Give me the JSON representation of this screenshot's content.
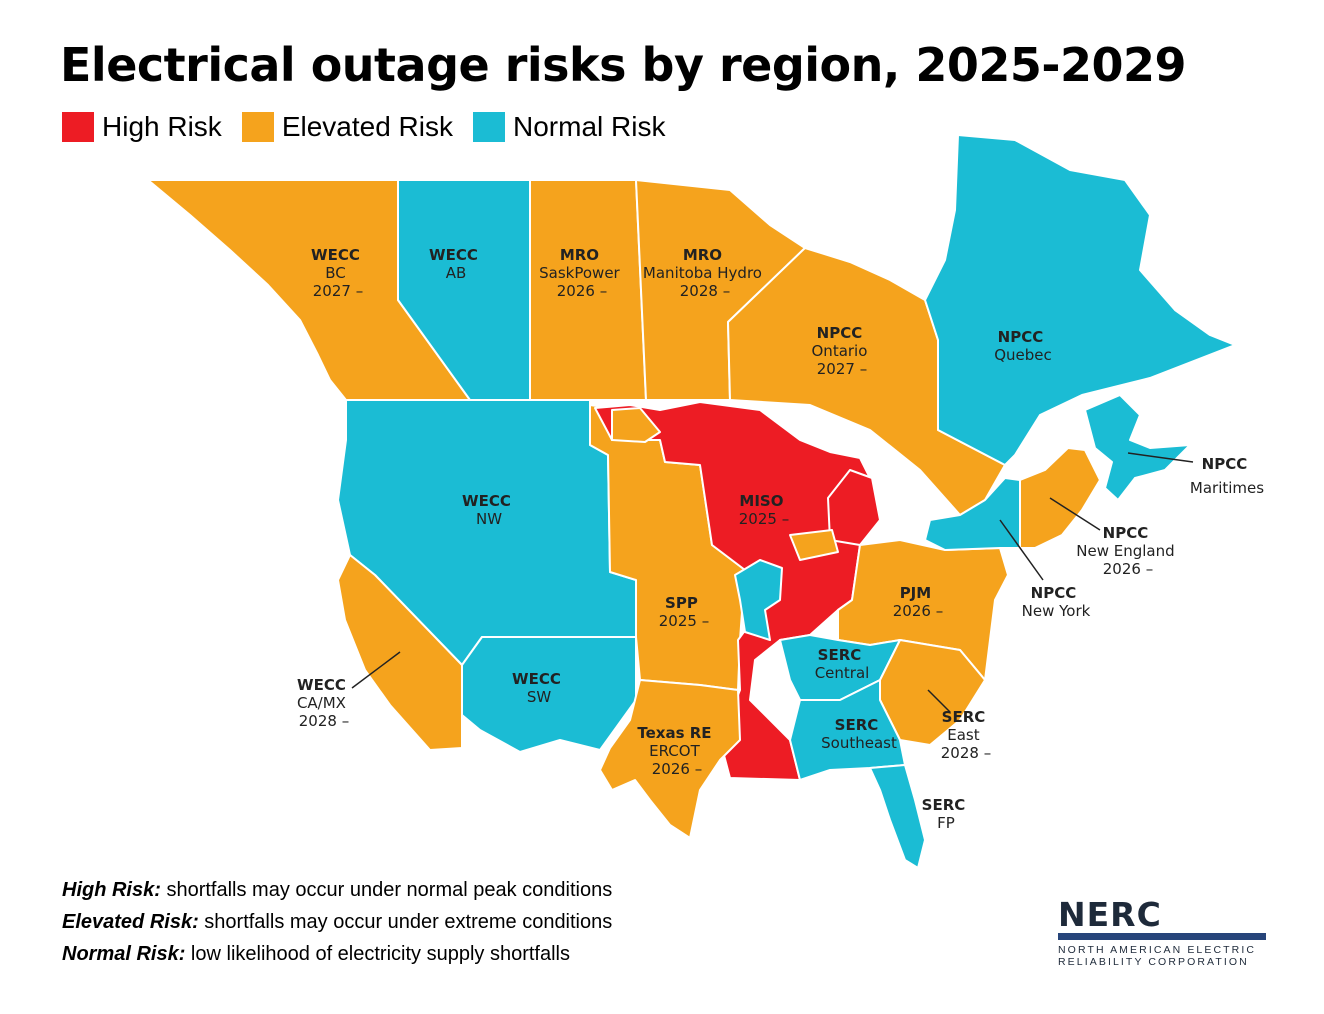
{
  "title": "Electrical outage risks by region, 2025-2029",
  "legend": [
    {
      "label": "High Risk",
      "color": "#ed1c24"
    },
    {
      "label": "Elevated Risk",
      "color": "#f5a31d"
    },
    {
      "label": "Normal Risk",
      "color": "#1bbcd4"
    }
  ],
  "regions": [
    {
      "name": "WECC",
      "sub": "BC",
      "year": "2027 –",
      "risk": "Elevated Risk"
    },
    {
      "name": "WECC",
      "sub": "AB",
      "year": "",
      "risk": "Normal Risk"
    },
    {
      "name": "MRO",
      "sub": "SaskPower",
      "year": "2026 –",
      "risk": "Elevated Risk"
    },
    {
      "name": "MRO",
      "sub": "Manitoba Hydro",
      "year": "2028 –",
      "risk": "Elevated Risk"
    },
    {
      "name": "NPCC",
      "sub": "Ontario",
      "year": "2027 –",
      "risk": "Elevated Risk"
    },
    {
      "name": "NPCC",
      "sub": "Quebec",
      "year": "",
      "risk": "Normal Risk"
    },
    {
      "name": "NPCC",
      "sub": "Maritimes",
      "year": "",
      "risk": "Normal Risk"
    },
    {
      "name": "NPCC",
      "sub": "New England",
      "year": "2026 –",
      "risk": "Elevated Risk"
    },
    {
      "name": "NPCC",
      "sub": "New York",
      "year": "",
      "risk": "Normal Risk"
    },
    {
      "name": "WECC",
      "sub": "NW",
      "year": "",
      "risk": "Normal Risk"
    },
    {
      "name": "MISO",
      "sub": "",
      "year": "2025 –",
      "risk": "High Risk"
    },
    {
      "name": "SPP",
      "sub": "",
      "year": "2025 –",
      "risk": "Elevated Risk"
    },
    {
      "name": "PJM",
      "sub": "",
      "year": "2026 –",
      "risk": "Elevated Risk"
    },
    {
      "name": "WECC",
      "sub": "CA/MX",
      "year": "2028 –",
      "risk": "Elevated Risk"
    },
    {
      "name": "WECC",
      "sub": "SW",
      "year": "",
      "risk": "Normal Risk"
    },
    {
      "name": "SERC",
      "sub": "Central",
      "year": "",
      "risk": "Normal Risk"
    },
    {
      "name": "Texas RE",
      "sub": "ERCOT",
      "year": "2026 –",
      "risk": "Elevated Risk"
    },
    {
      "name": "SERC",
      "sub": "Southeast",
      "year": "",
      "risk": "Normal Risk"
    },
    {
      "name": "SERC",
      "sub": "East",
      "year": "2028 –",
      "risk": "Elevated Risk"
    },
    {
      "name": "SERC",
      "sub": "FP",
      "year": "",
      "risk": "Normal Risk"
    }
  ],
  "notes": [
    {
      "term": "High Risk:",
      "text": " shortfalls may occur under normal peak conditions"
    },
    {
      "term": "Elevated Risk:",
      "text": " shortfalls may occur under extreme conditions"
    },
    {
      "term": "Normal Risk:",
      "text": " low likelihood of electricity supply shortfalls"
    }
  ],
  "logo": {
    "mark": "NERC",
    "line1": "NORTH AMERICAN ELECTRIC",
    "line2": "RELIABILITY CORPORATION"
  }
}
